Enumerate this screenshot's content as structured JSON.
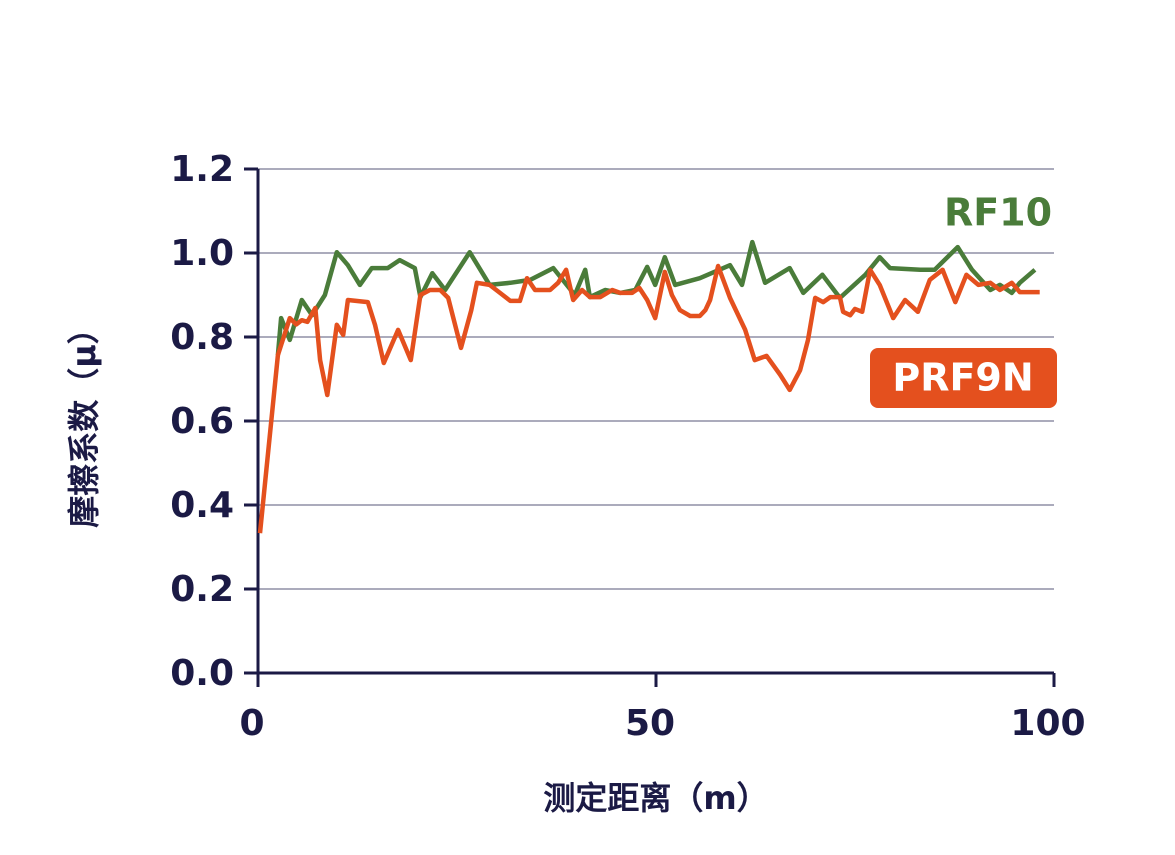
{
  "chart_data": {
    "type": "line",
    "x_label": "测定距离（m）",
    "y_label": "摩擦系数（μ）",
    "xlim": [
      0,
      100
    ],
    "xticks": [
      0,
      50,
      100
    ],
    "ylim": [
      0,
      1.2
    ],
    "yticks": [
      {
        "value": 0,
        "label": "0.0"
      },
      0.2,
      0.4,
      0.6,
      0.8,
      {
        "value": 1,
        "label": "1.0"
      },
      1.2
    ],
    "grid": true,
    "series": [
      {
        "name": "RF10",
        "color": "#4a7c3a",
        "x": [
          2.5,
          2.9,
          4.0,
          5.5,
          6.8,
          8.4,
          9.9,
          11.3,
          12.8,
          14.3,
          16.3,
          17.8,
          19.7,
          20.4,
          21.9,
          23.5,
          26.6,
          29.1,
          31.7,
          34.2,
          37.1,
          39.8,
          41.1,
          41.7,
          43.6,
          45.5,
          47.4,
          48.9,
          49.9,
          51.1,
          52.4,
          55.5,
          59.3,
          60.8,
          62.1,
          63.7,
          66.8,
          68.5,
          70.9,
          73.1,
          76.3,
          78.1,
          79.4,
          83.2,
          85.0,
          87.9,
          89.7,
          92.0,
          93.2,
          94.7,
          95.7,
          97.6
        ],
        "values": [
          0.757,
          0.845,
          0.793,
          0.888,
          0.852,
          0.9,
          1.002,
          0.971,
          0.924,
          0.964,
          0.964,
          0.983,
          0.964,
          0.895,
          0.952,
          0.912,
          1.002,
          0.924,
          0.929,
          0.936,
          0.964,
          0.9,
          0.96,
          0.895,
          0.912,
          0.905,
          0.912,
          0.967,
          0.924,
          0.99,
          0.924,
          0.94,
          0.971,
          0.924,
          1.026,
          0.929,
          0.964,
          0.905,
          0.948,
          0.893,
          0.948,
          0.99,
          0.964,
          0.96,
          0.96,
          1.014,
          0.96,
          0.912,
          0.924,
          0.905,
          0.929,
          0.96
        ]
      },
      {
        "name": "PRF9N",
        "color": "#e4501e",
        "x": [
          0.25,
          2.5,
          4.0,
          4.8,
          5.5,
          6.2,
          7.2,
          7.8,
          8.7,
          9.9,
          10.7,
          11.3,
          13.8,
          14.7,
          15.8,
          17.6,
          19.2,
          20.4,
          21.6,
          22.9,
          23.9,
          25.5,
          26.8,
          27.5,
          29.1,
          30.4,
          31.7,
          32.9,
          33.8,
          34.8,
          36.7,
          37.7,
          38.7,
          39.6,
          40.7,
          41.7,
          43.0,
          44.5,
          45.5,
          47.0,
          47.9,
          48.9,
          49.9,
          51.1,
          52.0,
          53.0,
          54.3,
          55.5,
          56.2,
          56.8,
          57.8,
          59.3,
          61.2,
          62.4,
          63.9,
          65.6,
          66.8,
          68.1,
          69.1,
          70.0,
          71.0,
          71.9,
          73.1,
          73.5,
          74.4,
          75.0,
          75.9,
          76.9,
          78.1,
          79.8,
          81.3,
          82.9,
          84.4,
          86.0,
          87.6,
          89.0,
          90.5,
          92.0,
          93.2,
          94.7,
          95.7,
          98.2
        ],
        "values": [
          0.333,
          0.757,
          0.845,
          0.83,
          0.84,
          0.836,
          0.869,
          0.745,
          0.662,
          0.829,
          0.805,
          0.888,
          0.883,
          0.829,
          0.738,
          0.817,
          0.745,
          0.9,
          0.912,
          0.912,
          0.893,
          0.774,
          0.864,
          0.929,
          0.924,
          0.905,
          0.886,
          0.886,
          0.94,
          0.912,
          0.912,
          0.929,
          0.96,
          0.888,
          0.912,
          0.895,
          0.895,
          0.912,
          0.905,
          0.905,
          0.917,
          0.888,
          0.845,
          0.955,
          0.9,
          0.864,
          0.85,
          0.85,
          0.864,
          0.888,
          0.969,
          0.893,
          0.817,
          0.745,
          0.755,
          0.71,
          0.674,
          0.721,
          0.793,
          0.893,
          0.883,
          0.895,
          0.895,
          0.86,
          0.852,
          0.867,
          0.86,
          0.96,
          0.924,
          0.845,
          0.888,
          0.86,
          0.936,
          0.96,
          0.883,
          0.948,
          0.924,
          0.929,
          0.912,
          0.929,
          0.907,
          0.907
        ]
      }
    ]
  }
}
